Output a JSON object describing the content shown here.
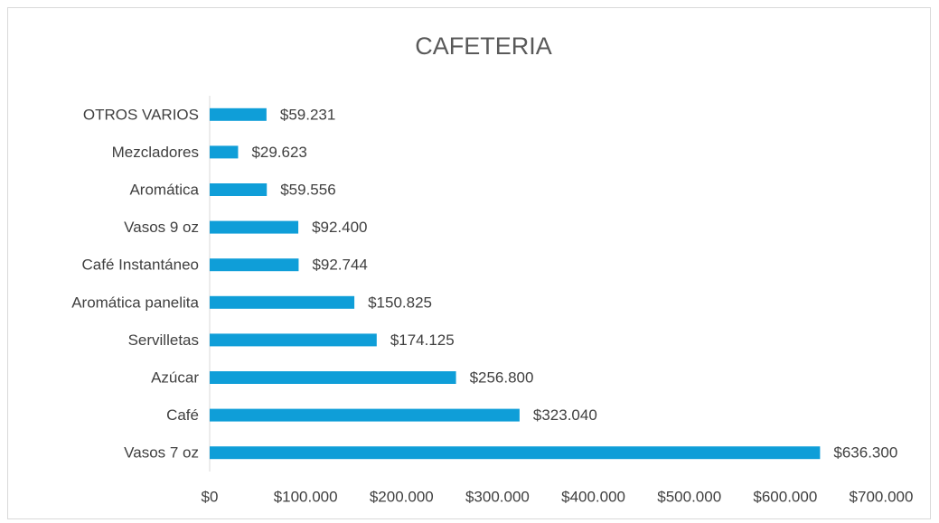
{
  "chart_data": {
    "type": "bar",
    "orientation": "horizontal",
    "title": "CAFETERIA",
    "categories": [
      "OTROS VARIOS",
      "Mezcladores",
      "Aromática",
      "Vasos 9 oz",
      "Café Instantáneo",
      "Aromática panelita",
      "Servilletas",
      "Azúcar",
      "Café",
      "Vasos 7 oz"
    ],
    "values": [
      59231,
      29623,
      59556,
      92400,
      92744,
      150825,
      174125,
      256800,
      323040,
      636300
    ],
    "value_labels": [
      "$59.231",
      "$29.623",
      "$59.556",
      "$92.400",
      "$92.744",
      "$150.825",
      "$174.125",
      "$256.800",
      "$323.040",
      "$636.300"
    ],
    "color": "#0f9ed8",
    "xlim": [
      0,
      700000
    ],
    "xticks": [
      {
        "value": 0,
        "label": "$0"
      },
      {
        "value": 100000,
        "label": "$100.000"
      },
      {
        "value": 200000,
        "label": "$200.000"
      },
      {
        "value": 300000,
        "label": "$300.000"
      },
      {
        "value": 400000,
        "label": "$400.000"
      },
      {
        "value": 500000,
        "label": "$500.000"
      },
      {
        "value": 600000,
        "label": "$600.000"
      },
      {
        "value": 700000,
        "label": "$700.000"
      }
    ],
    "grid": false
  }
}
